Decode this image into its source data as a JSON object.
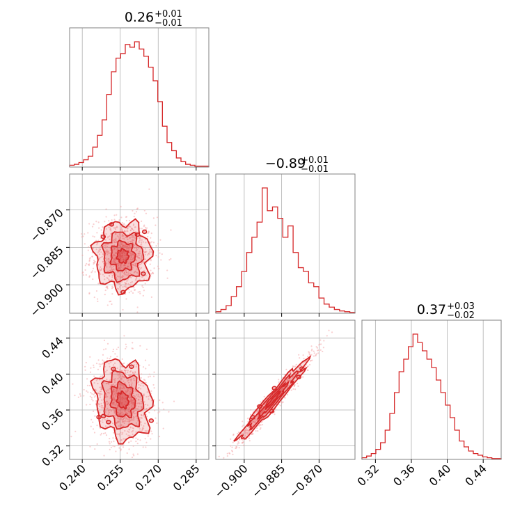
{
  "colors": {
    "accent": "#d62728",
    "accent_light": "#f4a8aa",
    "grid": "#b0b0b0",
    "frame": "#808080"
  },
  "chart_data": {
    "type": "corner",
    "parameters": [
      {
        "title_value": "0.26",
        "title_plus": "+0.01",
        "title_minus": "−0.01",
        "range": [
          0.235,
          0.29
        ],
        "ticks": [
          0.24,
          0.255,
          0.27,
          0.285
        ],
        "tick_labels": [
          "0.240",
          "0.255",
          "0.270",
          "0.285"
        ]
      },
      {
        "title_value": "−0.89",
        "title_plus": "+0.01",
        "title_minus": "−0.01",
        "range": [
          -0.9114,
          -0.8556
        ],
        "ticks": [
          -0.9,
          -0.885,
          -0.87
        ],
        "tick_labels": [
          "−0.900",
          "−0.885",
          "−0.870"
        ]
      },
      {
        "title_value": "0.37",
        "title_plus": "+0.03",
        "title_minus": "−0.02",
        "range": [
          0.305,
          0.46
        ],
        "ticks": [
          0.32,
          0.36,
          0.4,
          0.44
        ],
        "tick_labels": [
          "0.32",
          "0.36",
          "0.40",
          "0.44"
        ]
      }
    ],
    "histograms": [
      {
        "param": 0,
        "counts": [
          2,
          3,
          5,
          8,
          12,
          22,
          35,
          52,
          80,
          105,
          120,
          125,
          135,
          132,
          138,
          130,
          122,
          110,
          95,
          72,
          45,
          27,
          18,
          10,
          6,
          3,
          2,
          1,
          1,
          1
        ]
      },
      {
        "param": 1,
        "counts": [
          2,
          5,
          10,
          22,
          35,
          55,
          80,
          100,
          120,
          165,
          135,
          140,
          125,
          100,
          115,
          80,
          60,
          55,
          40,
          35,
          20,
          12,
          8,
          5,
          3,
          2,
          1
        ]
      },
      {
        "param": 2,
        "counts": [
          2,
          4,
          7,
          12,
          20,
          35,
          55,
          80,
          105,
          120,
          135,
          150,
          140,
          130,
          120,
          110,
          95,
          80,
          65,
          50,
          35,
          22,
          15,
          10,
          7,
          5,
          3,
          2,
          1,
          1
        ]
      }
    ],
    "scatter_2d": [
      {
        "x_param": 0,
        "y_param": 1,
        "center": [
          0.256,
          -0.8885
        ],
        "sd": [
          0.0055,
          0.0068
        ],
        "corr": 0.0
      },
      {
        "x_param": 0,
        "y_param": 2,
        "center": [
          0.256,
          0.371
        ],
        "sd": [
          0.0055,
          0.022
        ],
        "corr": -0.15
      },
      {
        "x_param": 1,
        "y_param": 2,
        "center": [
          -0.8885,
          0.371
        ],
        "sd": [
          0.0068,
          0.022
        ],
        "corr": 0.97
      }
    ]
  }
}
